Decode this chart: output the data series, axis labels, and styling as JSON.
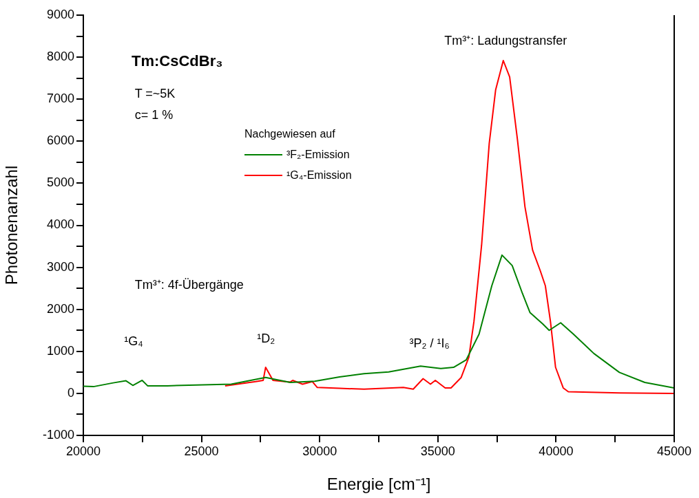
{
  "chart_data": {
    "type": "line",
    "title": "Tm:CsCdBr₃",
    "xlabel": "Energie [cm⁻¹]",
    "ylabel": "Photonenanzahl",
    "legend_title": "Nachgewiesen auf",
    "legend": "top left",
    "grid": false,
    "marker": "none",
    "line_style": "solid",
    "xlim": [
      20000,
      45000
    ],
    "ylim": [
      -1000,
      9000
    ],
    "xticks": [
      20000,
      {
        "value": 22500,
        "label": null
      },
      25000,
      {
        "value": 27500,
        "label": null
      },
      30000,
      {
        "value": 32500,
        "label": null
      },
      35000,
      {
        "value": 37500,
        "label": null
      },
      40000,
      {
        "value": 42500,
        "label": null
      },
      45000
    ],
    "yticks": [
      -1000,
      {
        "value": -500,
        "label": null
      },
      0,
      {
        "value": 500,
        "label": null
      },
      1000,
      {
        "value": 1500,
        "label": null
      },
      2000,
      {
        "value": 2500,
        "label": null
      },
      3000,
      {
        "value": 3500,
        "label": null
      },
      4000,
      {
        "value": 4500,
        "label": null
      },
      5000,
      {
        "value": 5500,
        "label": null
      },
      6000,
      {
        "value": 6500,
        "label": null
      },
      7000,
      {
        "value": 7500,
        "label": null
      },
      8000,
      {
        "value": 8500,
        "label": null
      },
      9000
    ],
    "annotations": [
      "T =~5K",
      "c= 1 %",
      "Tm³⁺: 4f-Übergänge",
      "¹G₄",
      "¹D₂",
      "³P₂ / ¹I₆",
      "Tm³⁺: Ladungstransfer"
    ],
    "series": [
      {
        "name": "³F₂-Emission",
        "color": "#008000",
        "x": [
          20000,
          20428,
          21262,
          21804,
          22095,
          22489,
          22719,
          23552,
          26257,
          27713,
          28754,
          29794,
          30837,
          31877,
          32918,
          34270,
          35124,
          35664,
          36203,
          36743,
          37282,
          37714,
          38146,
          38577,
          38901,
          39440,
          39710,
          40196,
          40735,
          41600,
          42680,
          43757,
          45000
        ],
        "values": [
          170,
          160,
          250,
          300,
          190,
          310,
          180,
          180,
          220,
          380,
          260,
          290,
          390,
          470,
          510,
          650,
          590,
          620,
          800,
          1410,
          2560,
          3290,
          3040,
          2380,
          1920,
          1650,
          1500,
          1680,
          1410,
          950,
          500,
          260,
          130
        ]
      },
      {
        "name": "¹G₄-Emission",
        "color": "#ff0000",
        "x": [
          26000,
          27297,
          27609,
          27713,
          28025,
          28754,
          28859,
          29275,
          29692,
          29899,
          30837,
          31877,
          33541,
          33958,
          34375,
          34687,
          34893,
          35310,
          35556,
          35988,
          36311,
          36527,
          36851,
          37174,
          37444,
          37768,
          38038,
          38361,
          38685,
          39009,
          39332,
          39548,
          39764,
          39980,
          40304,
          40520,
          42680,
          45000
        ],
        "values": [
          180,
          280,
          310,
          620,
          310,
          270,
          310,
          220,
          280,
          140,
          120,
          100,
          140,
          100,
          350,
          220,
          310,
          130,
          130,
          380,
          860,
          1710,
          3530,
          5950,
          7220,
          7920,
          7530,
          6070,
          4440,
          3410,
          2920,
          2560,
          1710,
          620,
          130,
          40,
          10,
          0
        ]
      }
    ]
  }
}
